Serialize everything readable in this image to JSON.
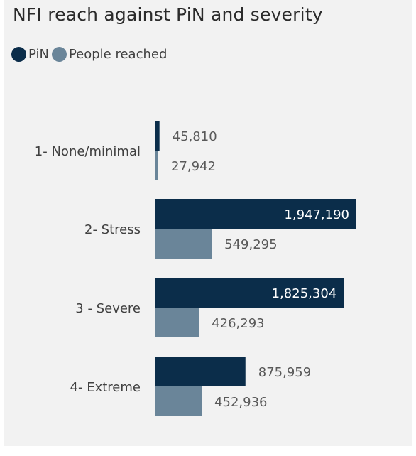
{
  "chart_data": {
    "type": "bar",
    "orientation": "horizontal",
    "title": "NFI reach against PiN and severity",
    "categories": [
      "1- None/minimal",
      "2- Stress",
      "3 - Severe",
      "4- Extreme"
    ],
    "series": [
      {
        "name": "PiN",
        "color": "#0b2d4a",
        "values": [
          45810,
          1947190,
          1825304,
          875959
        ],
        "labels": [
          "45,810",
          "1,947,190",
          "1,825,304",
          "875,959"
        ]
      },
      {
        "name": "People reached",
        "color": "#6a8599",
        "values": [
          27942,
          549295,
          426293,
          452936
        ],
        "labels": [
          "27,942",
          "549,295",
          "426,293",
          "452,936"
        ]
      }
    ],
    "xlim": [
      0,
      1947190
    ],
    "legend_position": "top-left",
    "grid": false
  }
}
